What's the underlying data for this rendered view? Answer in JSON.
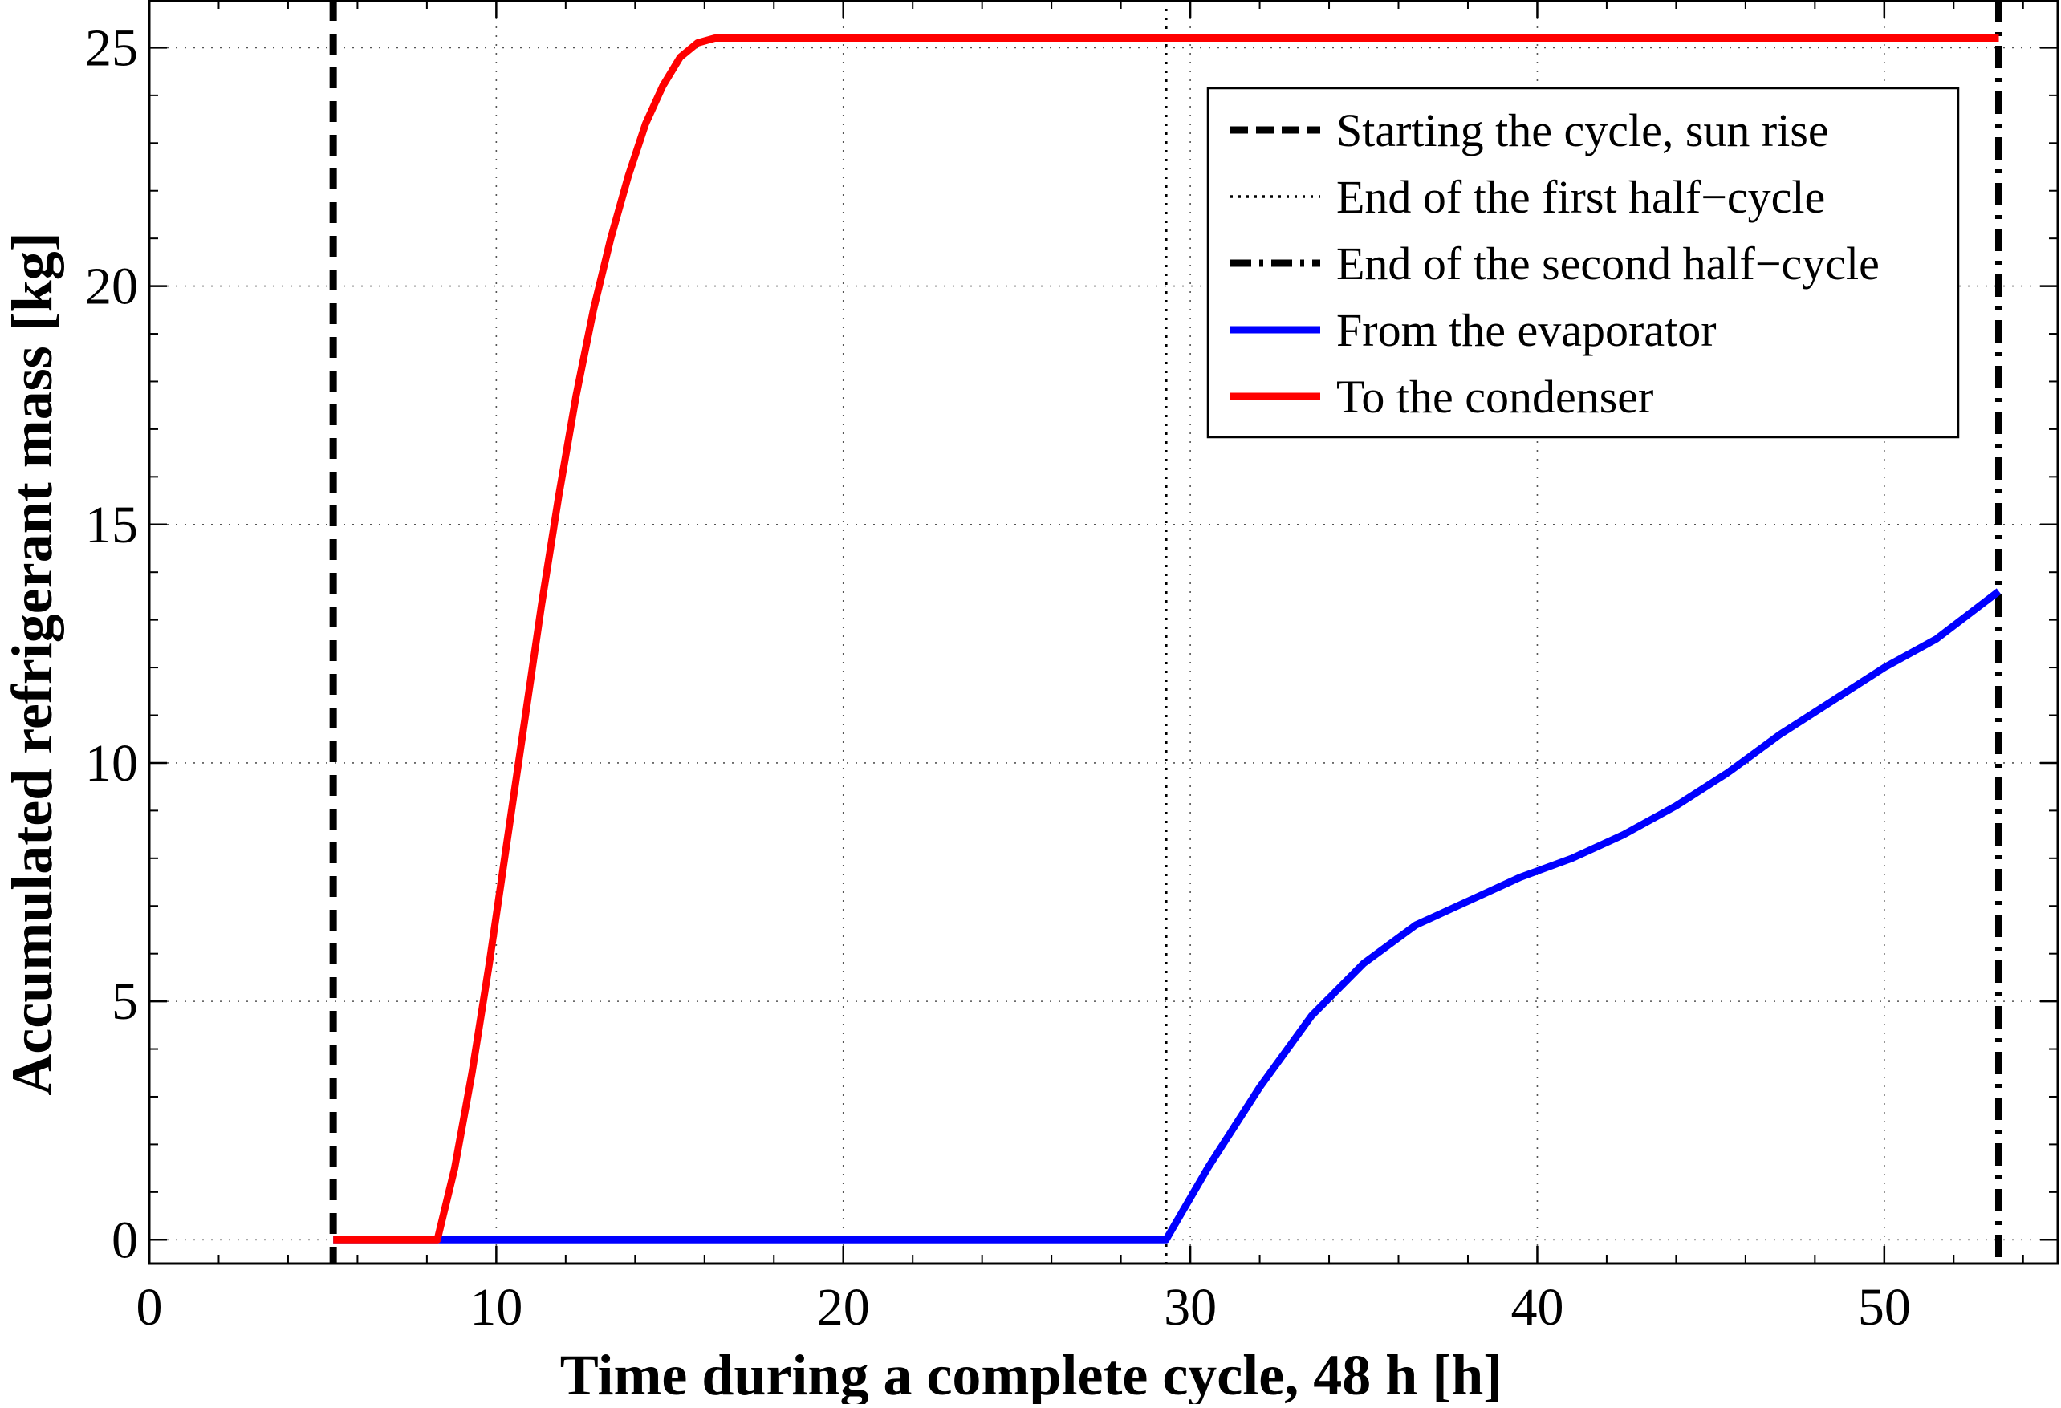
{
  "chart_data": {
    "type": "line",
    "title": "",
    "xlabel": "Time during a complete cycle, 48 h  [h]",
    "ylabel": "Accumulated refrigerant mass  [kg]",
    "xlim": [
      0,
      55
    ],
    "ylim": [
      -0.5,
      26
    ],
    "xticks": [
      0,
      10,
      20,
      30,
      40,
      50
    ],
    "yticks": [
      0,
      5,
      10,
      15,
      20,
      25
    ],
    "x_tick_labels": [
      "0",
      "10",
      "20",
      "30",
      "40",
      "50"
    ],
    "y_tick_labels": [
      "0",
      "5",
      "10",
      "15",
      "20",
      "25"
    ],
    "grid": true,
    "legend_position": "top-right",
    "series": [
      {
        "name": "Starting the cycle, sun rise",
        "kind": "vline",
        "style": "dashed",
        "color": "#000000",
        "x": 5.3
      },
      {
        "name": "End of the first half−cycle",
        "kind": "vline",
        "style": "dotted",
        "color": "#000000",
        "x": 29.3
      },
      {
        "name": "End of the second half−cycle",
        "kind": "vline",
        "style": "dashdot",
        "color": "#000000",
        "x": 53.3
      },
      {
        "name": "From the evaporator",
        "kind": "line",
        "style": "solid",
        "color": "#0000ff",
        "x": [
          5.3,
          10,
          15,
          20,
          25,
          29.3,
          30.5,
          32,
          33.5,
          35,
          36.5,
          38,
          39.5,
          41,
          42.5,
          44,
          45.5,
          47,
          48.5,
          50,
          51.5,
          53.3
        ],
        "y": [
          0,
          0,
          0,
          0,
          0,
          0,
          1.5,
          3.2,
          4.7,
          5.8,
          6.6,
          7.1,
          7.6,
          8.0,
          8.5,
          9.1,
          9.8,
          10.6,
          11.3,
          12.0,
          12.6,
          13.6
        ]
      },
      {
        "name": "To the condenser",
        "kind": "line",
        "style": "solid",
        "color": "#ff0000",
        "x": [
          5.3,
          8.3,
          8.8,
          9.3,
          9.8,
          10.3,
          10.8,
          11.3,
          11.8,
          12.3,
          12.8,
          13.3,
          13.8,
          14.3,
          14.8,
          15.3,
          15.8,
          16.3,
          20,
          30,
          40,
          53.3
        ],
        "y": [
          0,
          0,
          1.5,
          3.5,
          5.8,
          8.3,
          10.8,
          13.3,
          15.6,
          17.7,
          19.5,
          21.0,
          22.3,
          23.4,
          24.2,
          24.8,
          25.1,
          25.2,
          25.2,
          25.2,
          25.2,
          25.2
        ]
      }
    ]
  }
}
